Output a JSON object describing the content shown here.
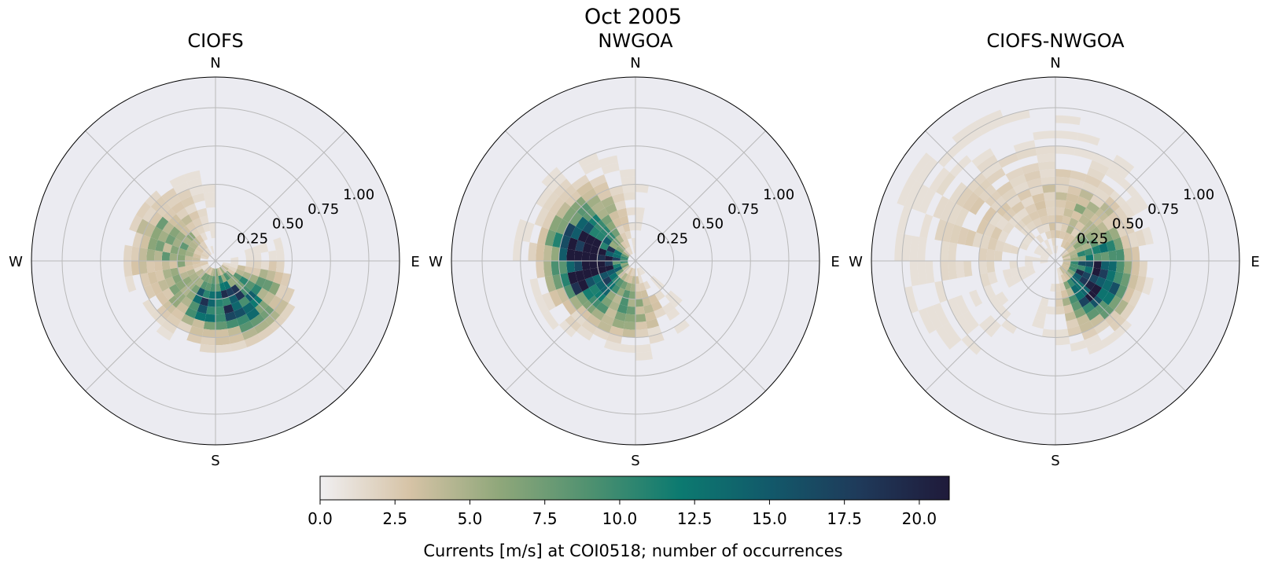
{
  "chart_data": {
    "type": "heatmap",
    "subtype": "polar-histogram",
    "suptitle": "Oct 2005",
    "value_label": "number of occurrences",
    "radial_ticks": [
      0.25,
      0.5,
      0.75,
      1.0
    ],
    "radial_tick_labels": [
      "0.25",
      "0.50",
      "0.75",
      "1.00"
    ],
    "radial_max": 1.2,
    "direction_labels": [
      "N",
      "E",
      "S",
      "W"
    ],
    "bin_width_deg": 10,
    "bin_width_speed": 0.05,
    "colorbar": {
      "label": "Currents [m/s] at COI0518; number of occurrences",
      "vmin": 0,
      "vmax": 21,
      "ticks": [
        0,
        2.5,
        5,
        7.5,
        10,
        12.5,
        15,
        17.5,
        20
      ],
      "tick_labels": [
        "0.0",
        "2.5",
        "5.0",
        "7.5",
        "10.0",
        "12.5",
        "15.0",
        "17.5",
        "20.0"
      ],
      "colormap": [
        "#f0eff1",
        "#d6c3a6",
        "#8fa77a",
        "#4f9170",
        "#0c7a70",
        "#12596a",
        "#1f3a5a",
        "#1f1a3a"
      ]
    },
    "panels": [
      {
        "title": "CIOFS",
        "lobes": [
          {
            "dir": 150,
            "dir_spread": 40,
            "r": 0.3,
            "r_spread": 0.2,
            "peak": 14
          },
          {
            "dir": 195,
            "dir_spread": 35,
            "r": 0.25,
            "r_spread": 0.16,
            "peak": 9
          },
          {
            "dir": 300,
            "dir_spread": 35,
            "r": 0.33,
            "r_spread": 0.22,
            "peak": 6
          },
          {
            "dir": 250,
            "dir_spread": 45,
            "r": 0.28,
            "r_spread": 0.25,
            "peak": 3
          }
        ],
        "extent": {
          "min_dir": 0,
          "max_dir": 360,
          "max_r": 0.6
        }
      },
      {
        "title": "NWGOA",
        "lobes": [
          {
            "dir": 275,
            "dir_spread": 30,
            "r": 0.3,
            "r_spread": 0.18,
            "peak": 21
          },
          {
            "dir": 250,
            "dir_spread": 35,
            "r": 0.28,
            "r_spread": 0.2,
            "peak": 12
          },
          {
            "dir": 300,
            "dir_spread": 40,
            "r": 0.35,
            "r_spread": 0.25,
            "peak": 8
          },
          {
            "dir": 190,
            "dir_spread": 35,
            "r": 0.3,
            "r_spread": 0.2,
            "peak": 6
          }
        ],
        "extent": {
          "min_dir": 0,
          "max_dir": 360,
          "max_r": 0.8
        }
      },
      {
        "title": "CIOFS-NWGOA",
        "lobes": [
          {
            "dir": 125,
            "dir_spread": 35,
            "r": 0.3,
            "r_spread": 0.18,
            "peak": 16
          },
          {
            "dir": 90,
            "dir_spread": 35,
            "r": 0.25,
            "r_spread": 0.2,
            "peak": 9
          },
          {
            "dir": 25,
            "dir_spread": 40,
            "r": 0.35,
            "r_spread": 0.25,
            "peak": 4
          },
          {
            "dir": 300,
            "dir_spread": 60,
            "r": 0.55,
            "r_spread": 0.4,
            "peak": 2
          }
        ],
        "extent": {
          "min_dir": 0,
          "max_dir": 360,
          "max_r": 1.1
        }
      }
    ]
  }
}
